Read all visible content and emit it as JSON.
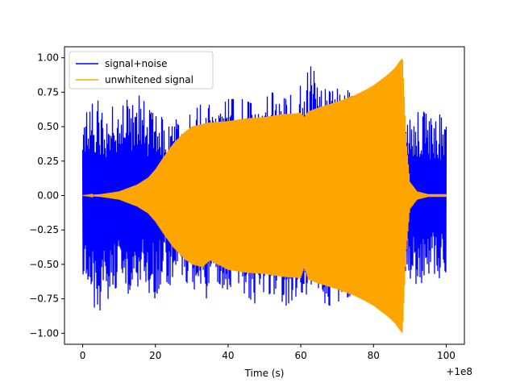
{
  "chart_data": {
    "type": "line",
    "title": "",
    "xlabel": "Time (s)",
    "ylabel": "",
    "x_offset_label": "+1e8",
    "xlim": [
      -5,
      105
    ],
    "ylim": [
      -1.08,
      1.08
    ],
    "x_ticks": [
      0,
      20,
      40,
      60,
      80,
      100
    ],
    "x_tick_labels": [
      "0",
      "20",
      "40",
      "60",
      "80",
      "100"
    ],
    "y_ticks": [
      -1.0,
      -0.75,
      -0.5,
      -0.25,
      0.0,
      0.25,
      0.5,
      0.75,
      1.0
    ],
    "y_tick_labels": [
      "−1.00",
      "−0.75",
      "−0.50",
      "−0.25",
      "0.00",
      "0.25",
      "0.50",
      "0.75",
      "1.00"
    ],
    "grid": false,
    "legend": {
      "position": "top-left"
    },
    "series": [
      {
        "name": "signal+noise",
        "color": "#0000ff",
        "x_range": [
          0,
          100
        ],
        "upper_envelope": {
          "x": [
            0,
            2,
            4,
            6,
            8,
            10,
            12,
            14,
            16,
            18,
            20,
            22,
            24,
            26,
            28,
            30,
            32,
            34,
            36,
            38,
            40,
            44,
            48,
            52,
            56,
            60,
            64,
            68,
            72,
            76,
            80,
            84,
            88,
            90,
            92,
            94,
            96,
            98,
            100
          ],
          "y": [
            0.55,
            0.65,
            0.7,
            0.6,
            0.65,
            0.6,
            0.7,
            0.65,
            0.75,
            0.6,
            0.7,
            0.55,
            0.55,
            0.6,
            0.55,
            0.6,
            0.65,
            0.7,
            0.6,
            0.65,
            0.7,
            0.7,
            0.65,
            0.75,
            0.7,
            0.8,
            1.0,
            0.75,
            0.8,
            0.65,
            0.8,
            0.75,
            0.7,
            0.55,
            0.6,
            0.65,
            0.55,
            0.6,
            0.5
          ]
        },
        "lower_envelope": {
          "x": [
            0,
            2,
            4,
            6,
            8,
            10,
            12,
            14,
            16,
            18,
            20,
            22,
            24,
            26,
            28,
            30,
            32,
            34,
            36,
            38,
            40,
            44,
            48,
            52,
            56,
            60,
            64,
            68,
            72,
            76,
            80,
            84,
            88,
            90,
            92,
            94,
            96,
            98,
            100
          ],
          "y": [
            -0.6,
            -0.7,
            -1.0,
            -0.8,
            -0.7,
            -0.65,
            -0.7,
            -0.75,
            -0.6,
            -0.7,
            -0.75,
            -0.6,
            -0.65,
            -0.7,
            -0.6,
            -0.7,
            -0.65,
            -0.75,
            -0.6,
            -0.65,
            -0.75,
            -0.7,
            -0.8,
            -0.7,
            -0.8,
            -0.7,
            -0.75,
            -0.8,
            -0.75,
            -0.7,
            -0.8,
            -0.75,
            -0.7,
            -0.6,
            -0.65,
            -0.7,
            -0.55,
            -0.6,
            -0.6
          ]
        }
      },
      {
        "name": "unwhitened signal",
        "color": "#ffa500",
        "x_range": [
          0,
          100
        ],
        "upper_envelope": {
          "x": [
            0,
            5,
            10,
            15,
            18,
            20,
            22,
            25,
            28,
            30,
            33,
            35,
            40,
            45,
            50,
            55,
            60,
            61,
            62,
            65,
            70,
            75,
            78,
            80,
            82,
            84,
            86,
            87,
            88,
            89,
            90,
            92,
            95,
            100
          ],
          "y": [
            0.0,
            0.01,
            0.03,
            0.08,
            0.13,
            0.19,
            0.27,
            0.38,
            0.46,
            0.5,
            0.52,
            0.53,
            0.54,
            0.56,
            0.57,
            0.59,
            0.6,
            0.57,
            0.61,
            0.64,
            0.68,
            0.73,
            0.77,
            0.8,
            0.84,
            0.88,
            0.93,
            0.97,
            1.0,
            0.4,
            0.1,
            0.03,
            0.01,
            0.01
          ]
        },
        "lower_envelope": {
          "x": [
            0,
            5,
            10,
            15,
            18,
            20,
            22,
            25,
            28,
            30,
            33,
            35,
            40,
            45,
            50,
            55,
            60,
            61,
            62,
            65,
            70,
            75,
            78,
            80,
            82,
            84,
            86,
            87,
            88,
            89,
            90,
            92,
            95,
            100
          ],
          "y": [
            0.0,
            -0.01,
            -0.03,
            -0.08,
            -0.13,
            -0.19,
            -0.27,
            -0.38,
            -0.46,
            -0.5,
            -0.52,
            -0.47,
            -0.54,
            -0.56,
            -0.57,
            -0.59,
            -0.6,
            -0.52,
            -0.61,
            -0.64,
            -0.68,
            -0.73,
            -0.77,
            -0.8,
            -0.84,
            -0.88,
            -0.93,
            -0.97,
            -1.0,
            -0.4,
            -0.1,
            -0.03,
            -0.01,
            -0.01
          ]
        }
      }
    ]
  }
}
